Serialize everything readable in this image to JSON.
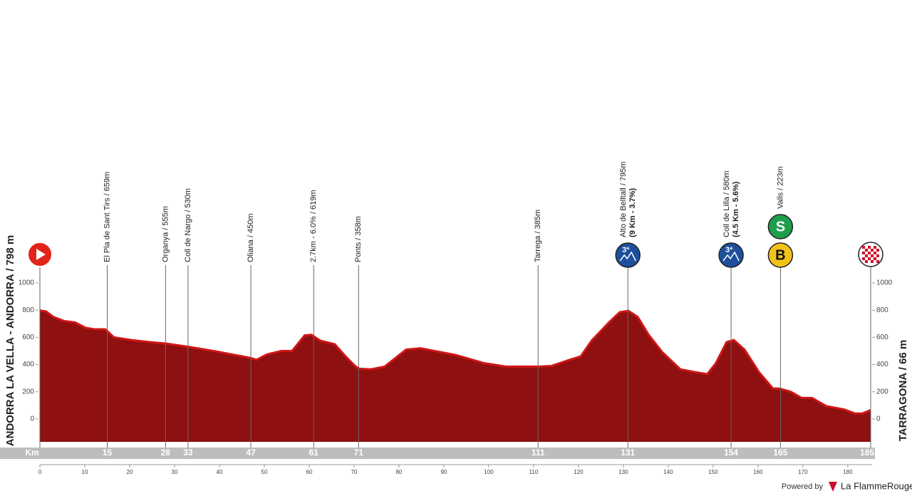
{
  "chart_data": {
    "type": "area",
    "start_label": "ANDORRA LA VELLA - ANDORRA / 798 m",
    "finish_label": "TARRAGONA / 66 m",
    "x": [
      0,
      1.4,
      3,
      5.4,
      7.8,
      10.2,
      12,
      14.6,
      16.5,
      20.5,
      24.4,
      28,
      33.2,
      38.7,
      46.7,
      48.3,
      50.6,
      53.8,
      56.2,
      59,
      60.5,
      62.5,
      65.7,
      68.1,
      70.2,
      71.1,
      73.7,
      76.8,
      81.6,
      84.8,
      87.9,
      92.7,
      99,
      103.8,
      107,
      111.3,
      114,
      118,
      120.5,
      122.9,
      126.8,
      129.2,
      131.1,
      133.2,
      135.6,
      138.7,
      142.7,
      145.9,
      148.7,
      150.6,
      153,
      154.6,
      157,
      160.2,
      163.3,
      164.9,
      167.3,
      169.7,
      172,
      175.2,
      179.2,
      181.6,
      183.2,
      185.1
    ],
    "values": [
      798,
      790,
      750,
      720,
      710,
      670,
      660,
      659,
      600,
      580,
      565,
      555,
      530,
      500,
      450,
      435,
      475,
      500,
      500,
      615,
      619,
      575,
      550,
      460,
      390,
      370,
      365,
      385,
      510,
      520,
      500,
      470,
      410,
      385,
      385,
      385,
      390,
      435,
      460,
      575,
      710,
      785,
      795,
      750,
      620,
      490,
      365,
      345,
      330,
      410,
      565,
      580,
      510,
      345,
      225,
      223,
      200,
      155,
      155,
      95,
      70,
      40,
      40,
      66
    ],
    "color": "#8e1010",
    "edge_color": "#d01616",
    "xlim": [
      0,
      185.1
    ],
    "ylim": [
      -168,
      1000
    ],
    "xticks": [
      0,
      10,
      20,
      30,
      40,
      50,
      60,
      70,
      80,
      90,
      100,
      110,
      120,
      130,
      140,
      150,
      160,
      170,
      180
    ],
    "yticks": [
      0,
      200,
      400,
      600,
      800,
      1000
    ],
    "km_label": "Km",
    "finish_km": {
      "value": 185.1,
      "label": "185,1"
    },
    "waypoints": [
      {
        "km": 15,
        "label": "El Pla de Sant Tirs / 659m"
      },
      {
        "km": 28,
        "label": "Organya / 555m"
      },
      {
        "km": 33,
        "label": "Coll de Nargo / 530m"
      },
      {
        "km": 47,
        "label": "Oliana / 450m"
      },
      {
        "km": 61,
        "label": "2.7km - 6.0% / 619m"
      },
      {
        "km": 71,
        "label": "Ponts / 358m"
      },
      {
        "km": 111,
        "label": "Tarrega / 385m"
      },
      {
        "km": 131,
        "label": "Alto de Belltall / 795m",
        "note": "(9 Km - 3.7%)",
        "climb": "3ª"
      },
      {
        "km": 154,
        "label": "Coll de Lilla / 580m",
        "note": "(4.5 Km - 5.6%)",
        "climb": "3ª"
      },
      {
        "km": 165,
        "label": "Valls / 223m",
        "sprint": "S",
        "bonus": "B"
      }
    ]
  },
  "footer": {
    "powered": "Powered by",
    "brand": "La FlammeRouge"
  }
}
